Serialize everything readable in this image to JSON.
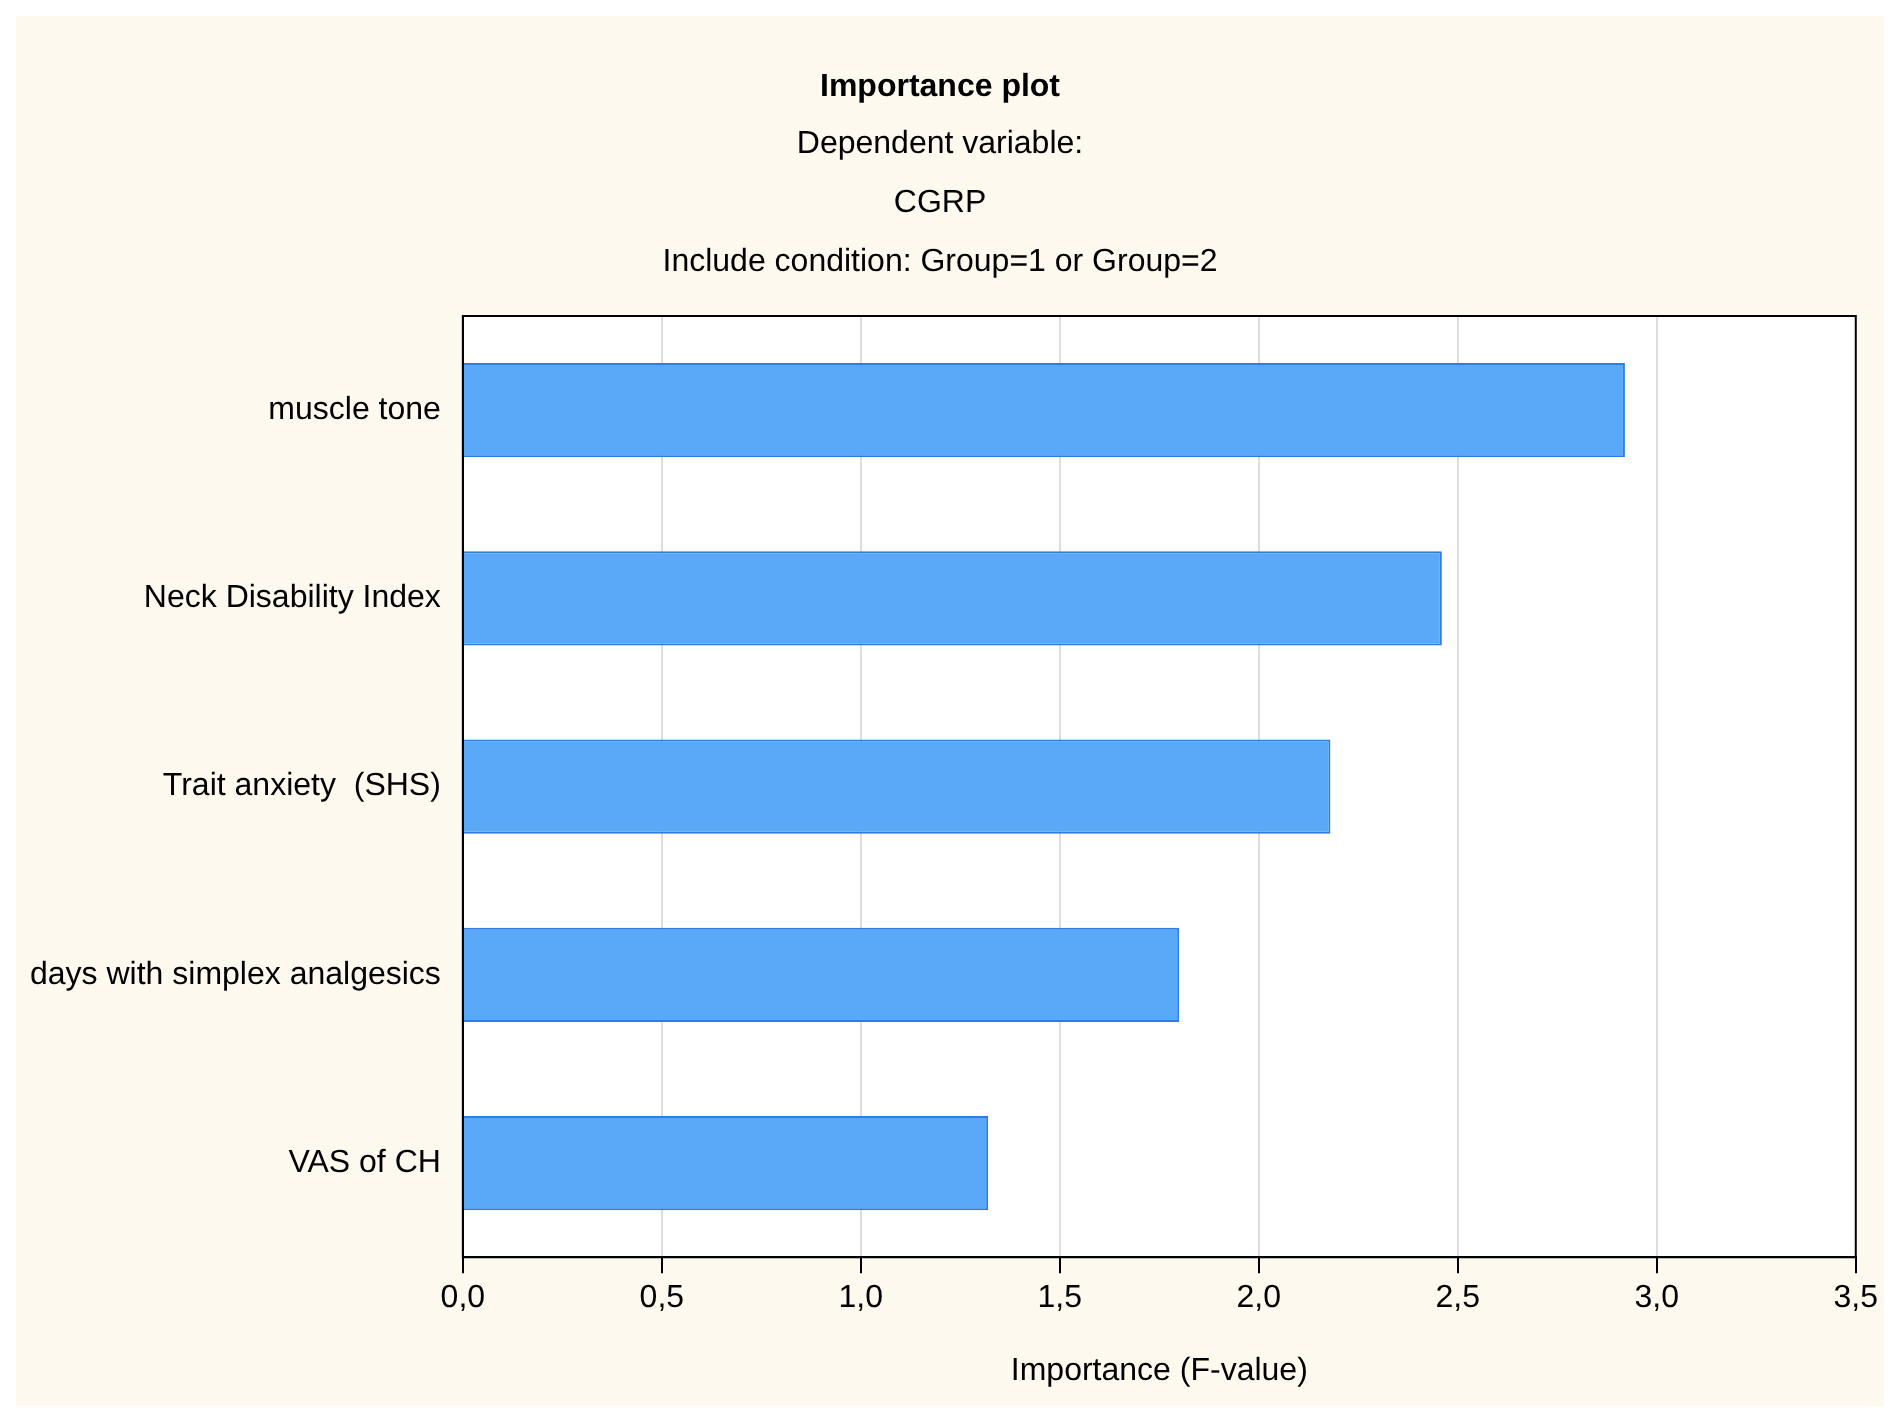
{
  "chart_data": {
    "type": "bar",
    "orientation": "horizontal",
    "title": "Importance plot",
    "subtitle": "Dependent variable:\nCGRP\nInclude condition: Group=1 or Group=2",
    "xlabel": "Importance (F-value)",
    "categories": [
      "muscle tone",
      "Neck Disability Index",
      "Trait anxiety  (SHS)",
      "days with simplex analgesics",
      "VAS of CH"
    ],
    "values": [
      2.92,
      2.46,
      2.18,
      1.8,
      1.32
    ],
    "color": "#5aa9f8",
    "xlim": [
      0,
      3.5
    ],
    "xticks": [
      {
        "value": 0,
        "label": "0,0"
      },
      {
        "value": 0.5,
        "label": "0,5"
      },
      {
        "value": 1,
        "label": "1,0"
      },
      {
        "value": 1.5,
        "label": "1,5"
      },
      {
        "value": 2,
        "label": "2,0"
      },
      {
        "value": 2.5,
        "label": "2,5"
      },
      {
        "value": 3,
        "label": "3,0"
      },
      {
        "value": 3.5,
        "label": "3,5"
      }
    ],
    "grid": "x",
    "legend": false
  }
}
